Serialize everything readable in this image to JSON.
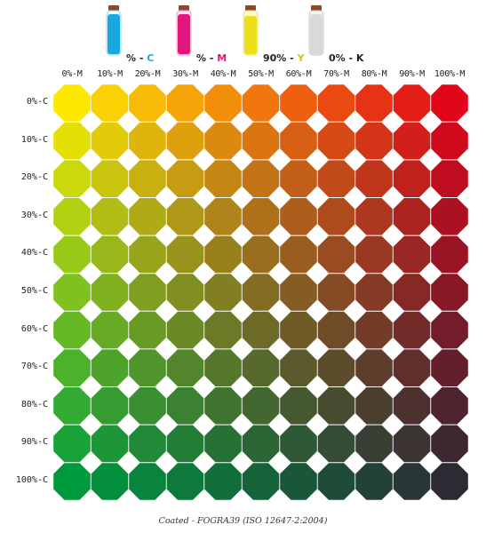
{
  "inks": [
    {
      "value": "%",
      "code": "C",
      "color": "#1aa8e0"
    },
    {
      "value": "%",
      "code": "M",
      "color": "#e0167d"
    },
    {
      "value": "90%",
      "code": "Y",
      "color": "#ecdf1a"
    },
    {
      "value": "0%",
      "code": "K",
      "color": "#d9d9d9"
    }
  ],
  "column_labels": [
    "0%-M",
    "10%-M",
    "20%-M",
    "30%-M",
    "40%-M",
    "50%-M",
    "60%-M",
    "70%-M",
    "80%-M",
    "90%-M",
    "100%-M"
  ],
  "row_labels": [
    "0%-C",
    "10%-C",
    "20%-C",
    "30%-C",
    "40%-C",
    "50%-C",
    "60%-C",
    "70%-C",
    "80%-C",
    "90%-C",
    "100%-C"
  ],
  "corner_colors": {
    "top_left": "#fde800",
    "top_right": "#e2061a",
    "bottom_left": "#009a3e",
    "bottom_right": "#2c2b34"
  },
  "caption": "Coated - FOGRA39 (ISO 12647-2:2004)"
}
